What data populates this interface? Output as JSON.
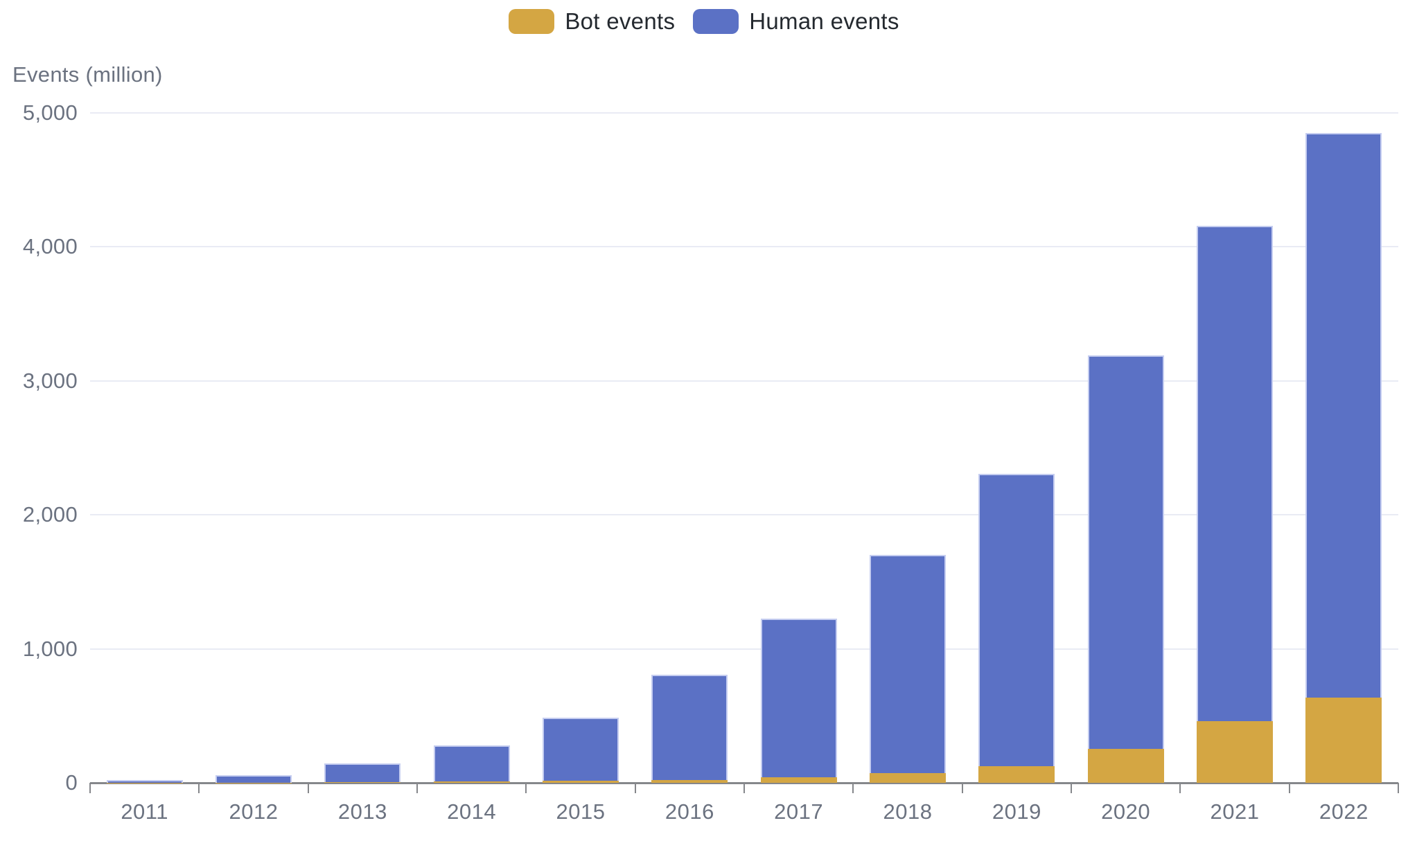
{
  "legend": {
    "note": "chart legend, top center"
  },
  "chart": {
    "y_axis_title": "Events (million)"
  },
  "chart_data": {
    "type": "bar",
    "stacked": true,
    "title": "",
    "xlabel": "",
    "ylabel": "Events (million)",
    "ylim": [
      0,
      5000
    ],
    "grid": true,
    "legend_position": "top-center",
    "categories": [
      "2011",
      "2012",
      "2013",
      "2014",
      "2015",
      "2016",
      "2017",
      "2018",
      "2019",
      "2020",
      "2021",
      "2022"
    ],
    "series": [
      {
        "name": "Bot events",
        "color": "#D4A643",
        "values": [
          1,
          2,
          4,
          8,
          14,
          22,
          40,
          70,
          122,
          255,
          458,
          638
        ]
      },
      {
        "name": "Human events",
        "color": "#5B71C5",
        "values": [
          19,
          55,
          139,
          269,
          471,
          786,
          1188,
          1630,
          2183,
          2935,
          3697,
          4212
        ]
      }
    ],
    "totals": [
      20,
      57,
      143,
      277,
      485,
      808,
      1228,
      1700,
      2305,
      3190,
      4155,
      4850
    ],
    "y_ticks": [
      {
        "value": 0,
        "label": "0"
      },
      {
        "value": 1000,
        "label": "1,000"
      },
      {
        "value": 2000,
        "label": "2,000"
      },
      {
        "value": 3000,
        "label": "3,000"
      },
      {
        "value": 4000,
        "label": "4,000"
      },
      {
        "value": 5000,
        "label": "5,000"
      }
    ],
    "colors": {
      "gridline": "#E9EBF4",
      "axis_line": "#85878B",
      "axis_text": "#6B7280",
      "legend_text": "#24292F",
      "background": "#FFFFFF"
    }
  }
}
